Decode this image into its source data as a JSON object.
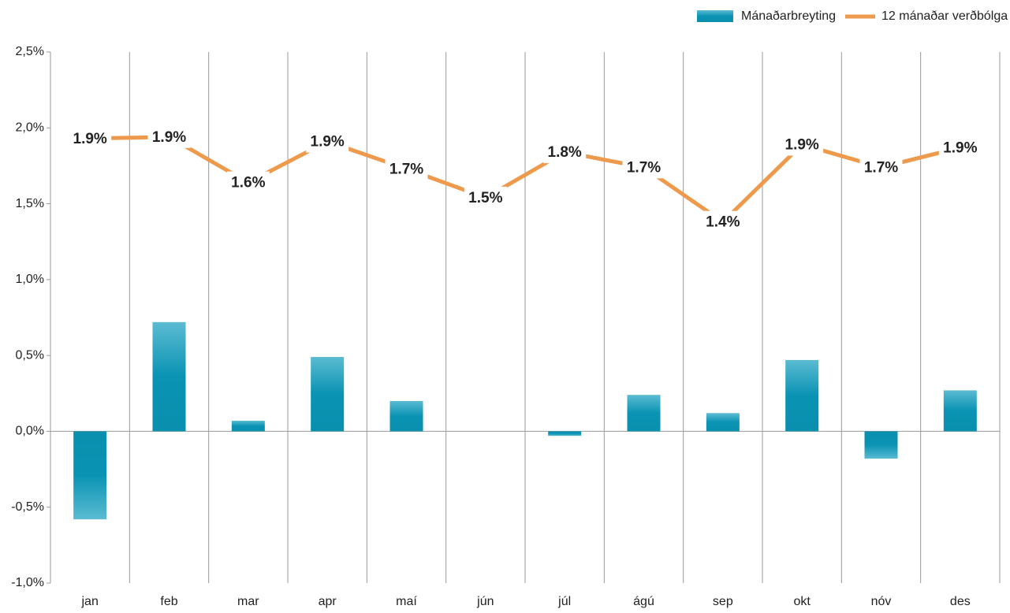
{
  "chart_data": {
    "type": "bar-line",
    "categories": [
      "jan",
      "feb",
      "mar",
      "apr",
      "maí",
      "jún",
      "júl",
      "ágú",
      "sep",
      "okt",
      "nóv",
      "des"
    ],
    "series": [
      {
        "name": "Mánaðarbreyting",
        "type": "bar",
        "color": "#0a93b3",
        "values": [
          -0.58,
          0.72,
          0.07,
          0.49,
          0.2,
          0,
          -0.03,
          0.24,
          0.12,
          0.47,
          -0.18,
          0.27
        ]
      },
      {
        "name": "12 mánaðar verðbólga",
        "type": "line",
        "color": "#ee9a4d",
        "values": [
          1.93,
          1.94,
          1.64,
          1.91,
          1.73,
          1.54,
          1.84,
          1.74,
          1.38,
          1.89,
          1.74,
          1.87
        ],
        "value_labels": [
          "1.9%",
          "1.9%",
          "1.6%",
          "1.9%",
          "1.7%",
          "1.5%",
          "1.8%",
          "1.7%",
          "1.4%",
          "1.9%",
          "1.7%",
          "1.9%"
        ]
      }
    ],
    "ylim": [
      -1.0,
      2.5
    ],
    "yticks": [
      {
        "value": -1.0,
        "label": "-1,0%"
      },
      {
        "value": -0.5,
        "label": "-0,5%"
      },
      {
        "value": 0,
        "label": "0,0%"
      },
      {
        "value": 0.5,
        "label": "0,5%"
      },
      {
        "value": 1.0,
        "label": "1,0%"
      },
      {
        "value": 1.5,
        "label": "1,5%"
      },
      {
        "value": 2.0,
        "label": "2,0%"
      },
      {
        "value": 2.5,
        "label": "2,5%"
      }
    ],
    "legend": "top-right"
  }
}
